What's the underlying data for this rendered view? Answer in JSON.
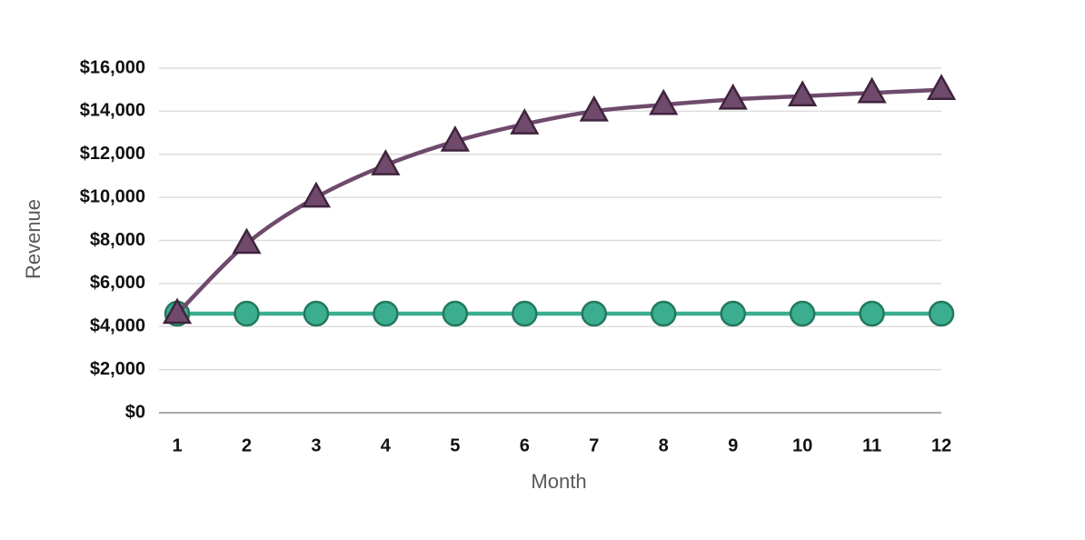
{
  "chart_data": {
    "type": "line",
    "x_label": "Month",
    "y_label": "Revenue",
    "categories": [
      "1",
      "2",
      "3",
      "4",
      "5",
      "6",
      "7",
      "8",
      "9",
      "10",
      "11",
      "12"
    ],
    "series": [
      {
        "color": "#6f4a6c",
        "marker": "triangle",
        "smooth": true,
        "values": [
          4600,
          7850,
          10000,
          11500,
          12600,
          13400,
          14000,
          14300,
          14550,
          14700,
          14850,
          15000
        ]
      },
      {
        "color": "#3bae8f",
        "marker": "circle",
        "smooth": false,
        "values": [
          4600,
          4600,
          4600,
          4600,
          4600,
          4600,
          4600,
          4600,
          4600,
          4600,
          4600,
          4600
        ]
      }
    ],
    "ylim": [
      0,
      16000
    ],
    "yticks": [
      {
        "value": 0,
        "label": "$0"
      },
      {
        "value": 2000,
        "label": "$2,000"
      },
      {
        "value": 4000,
        "label": "$4,000"
      },
      {
        "value": 6000,
        "label": "$6,000"
      },
      {
        "value": 8000,
        "label": "$8,000"
      },
      {
        "value": 10000,
        "label": "$10,000"
      },
      {
        "value": 12000,
        "label": "$12,000"
      },
      {
        "value": 14000,
        "label": "$14,000"
      },
      {
        "value": 16000,
        "label": "$16,000"
      }
    ],
    "grid": true
  }
}
